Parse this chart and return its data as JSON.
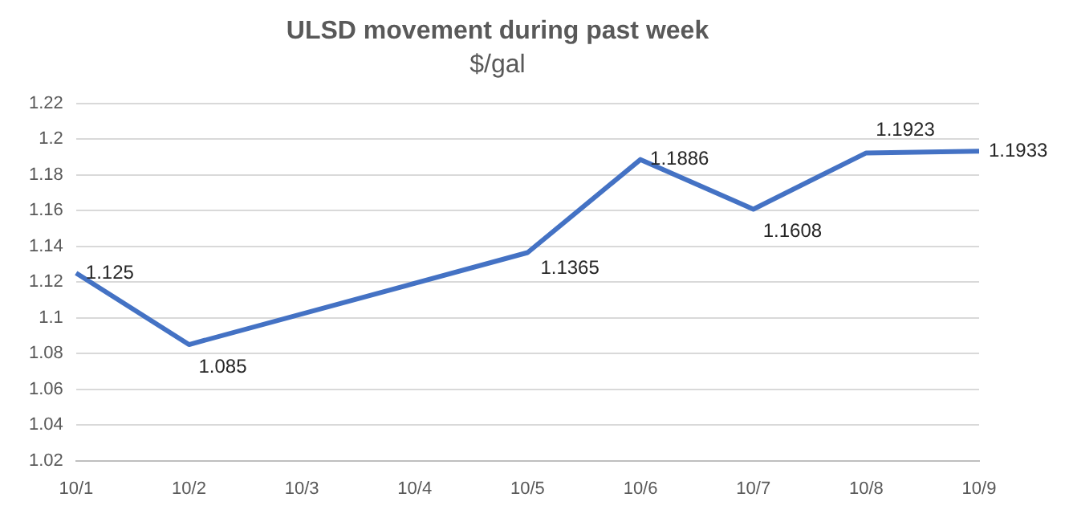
{
  "chart_data": {
    "type": "line",
    "title": "ULSD movement during past week",
    "subtitle": "$/gal",
    "categories": [
      "10/1",
      "10/2",
      "10/3",
      "10/4",
      "10/5",
      "10/6",
      "10/7",
      "10/8",
      "10/9"
    ],
    "series": [
      {
        "color": "#4472c4",
        "values": [
          1.125,
          1.085,
          null,
          null,
          1.1365,
          1.1886,
          1.1608,
          1.1923,
          1.1933
        ]
      }
    ],
    "ylim": [
      1.02,
      1.22
    ],
    "yticks": [
      1.02,
      1.04,
      1.06,
      1.08,
      1.1,
      1.12,
      1.14,
      1.16,
      1.18,
      1.2,
      1.22
    ],
    "grid": "y",
    "legend": false,
    "marker": "none",
    "line_style": "solid",
    "data_labels": true
  }
}
